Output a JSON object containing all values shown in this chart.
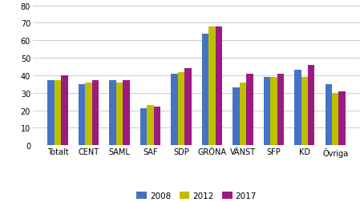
{
  "categories": [
    "Totalt",
    "CENT",
    "SAML",
    "SAF",
    "SDP",
    "GRÖNA",
    "VÄNST",
    "SFP",
    "KD",
    "Övriga"
  ],
  "series": {
    "2008": [
      37,
      35,
      37,
      21,
      41,
      64,
      33,
      39,
      43,
      35
    ],
    "2012": [
      37,
      36,
      36,
      23,
      42,
      68,
      36,
      39,
      39,
      30
    ],
    "2017": [
      40,
      37,
      37,
      22,
      44,
      68,
      41,
      41,
      46,
      31
    ]
  },
  "colors": {
    "2008": "#4472C4",
    "2012": "#BFBF00",
    "2017": "#9B1B7E"
  },
  "legend_labels": [
    "2008",
    "2012",
    "2017"
  ],
  "ylim": [
    0,
    80
  ],
  "yticks": [
    0,
    10,
    20,
    30,
    40,
    50,
    60,
    70,
    80
  ],
  "bar_width": 0.22,
  "background_color": "#ffffff",
  "grid_color": "#cccccc",
  "tick_fontsize": 7,
  "legend_fontsize": 7.5
}
